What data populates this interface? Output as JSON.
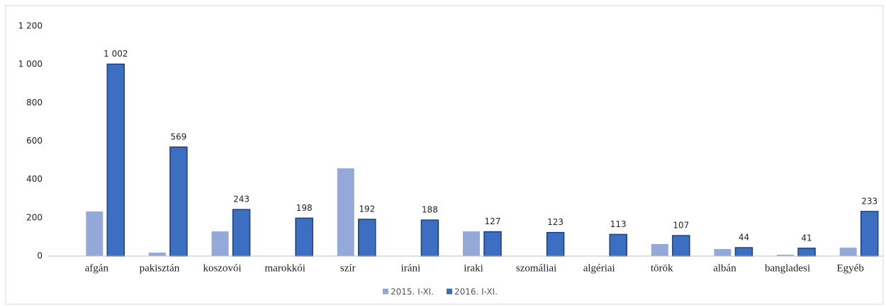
{
  "chart_data": {
    "type": "bar",
    "categories": [
      "afgán",
      "pakisztán",
      "koszovói",
      "marokkói",
      "szír",
      "iráni",
      "iraki",
      "szomáliai",
      "algériai",
      "török",
      "albán",
      "bangladesi",
      "Egyéb"
    ],
    "series": [
      {
        "name": "2015. I-XI.",
        "color": "#95a9d9",
        "values": [
          233,
          18,
          129,
          0,
          458,
          1,
          129,
          0,
          1,
          63,
          37,
          7,
          44
        ]
      },
      {
        "name": "2016. I-XI.",
        "color": "#3c6fc2",
        "values": [
          1002,
          569,
          243,
          198,
          192,
          188,
          127,
          123,
          113,
          107,
          44,
          41,
          233
        ],
        "value_labels": [
          "1 002",
          "569",
          "243",
          "198",
          "192",
          "188",
          "127",
          "123",
          "113",
          "107",
          "44",
          "41",
          "233"
        ]
      }
    ],
    "ylim": [
      0,
      1200
    ],
    "yticks": [
      0,
      200,
      400,
      600,
      800,
      {
        "value": 1000,
        "label": "1 000"
      },
      {
        "value": 1200,
        "label": "1 200"
      }
    ],
    "grid": false,
    "legend": "bottom"
  }
}
